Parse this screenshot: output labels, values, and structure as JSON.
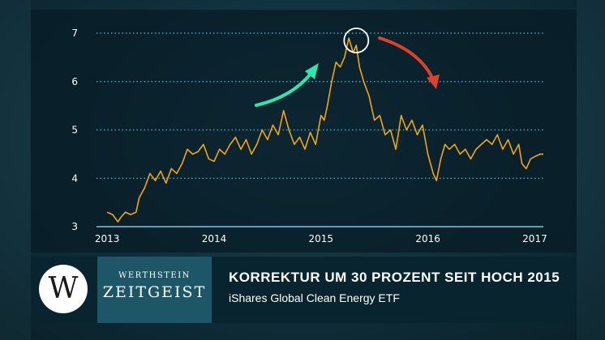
{
  "chart_data": {
    "type": "line",
    "title": "",
    "xlabel": "",
    "ylabel": "",
    "xlim": [
      2012.9,
      2017.08
    ],
    "ylim": [
      3,
      7
    ],
    "x_ticks": [
      {
        "value": 2013,
        "label": "2013"
      },
      {
        "value": 2014,
        "label": "2014"
      },
      {
        "value": 2015,
        "label": "2015"
      },
      {
        "value": 2016,
        "label": "2016"
      },
      {
        "value": 2017,
        "label": "2017"
      }
    ],
    "y_ticks": [
      {
        "value": 3,
        "label": "3"
      },
      {
        "value": 4,
        "label": "4"
      },
      {
        "value": 5,
        "label": "5"
      },
      {
        "value": 6,
        "label": "6"
      },
      {
        "value": 7,
        "label": "7"
      }
    ],
    "grid": "horizontal dotted",
    "series": [
      {
        "color": "#f2a515",
        "x": [
          2013.0,
          2013.05,
          2013.1,
          2013.13,
          2013.17,
          2013.22,
          2013.27,
          2013.3,
          2013.35,
          2013.4,
          2013.45,
          2013.5,
          2013.55,
          2013.6,
          2013.65,
          2013.7,
          2013.75,
          2013.8,
          2013.85,
          2013.9,
          2013.95,
          2014.0,
          2014.05,
          2014.1,
          2014.15,
          2014.2,
          2014.25,
          2014.3,
          2014.35,
          2014.4,
          2014.45,
          2014.5,
          2014.55,
          2014.6,
          2014.65,
          2014.7,
          2014.75,
          2014.8,
          2014.85,
          2014.9,
          2014.95,
          2015.0,
          2015.03,
          2015.06,
          2015.1,
          2015.14,
          2015.18,
          2015.22,
          2015.26,
          2015.3,
          2015.33,
          2015.36,
          2015.4,
          2015.45,
          2015.5,
          2015.55,
          2015.6,
          2015.65,
          2015.7,
          2015.75,
          2015.8,
          2015.85,
          2015.9,
          2015.95,
          2016.0,
          2016.05,
          2016.08,
          2016.12,
          2016.16,
          2016.2,
          2016.25,
          2016.3,
          2016.35,
          2016.4,
          2016.45,
          2016.5,
          2016.55,
          2016.6,
          2016.65,
          2016.7,
          2016.75,
          2016.8,
          2016.85,
          2016.88,
          2016.92,
          2016.96,
          2017.0,
          2017.05,
          2017.08
        ],
        "y": [
          3.3,
          3.25,
          3.1,
          3.2,
          3.3,
          3.25,
          3.3,
          3.6,
          3.8,
          4.1,
          3.95,
          4.15,
          3.9,
          4.2,
          4.1,
          4.3,
          4.6,
          4.5,
          4.55,
          4.7,
          4.4,
          4.35,
          4.6,
          4.5,
          4.7,
          4.85,
          4.6,
          4.8,
          4.5,
          4.7,
          5.0,
          4.8,
          5.1,
          4.9,
          5.4,
          5.0,
          4.7,
          4.85,
          4.6,
          4.95,
          4.7,
          5.3,
          5.2,
          5.5,
          6.0,
          6.4,
          6.3,
          6.5,
          6.9,
          6.6,
          6.75,
          6.3,
          6.0,
          5.7,
          5.2,
          5.3,
          4.9,
          5.0,
          4.6,
          5.3,
          5.0,
          5.2,
          4.9,
          5.1,
          4.5,
          4.1,
          3.95,
          4.4,
          4.7,
          4.6,
          4.7,
          4.5,
          4.6,
          4.4,
          4.6,
          4.7,
          4.8,
          4.7,
          4.9,
          4.6,
          4.8,
          4.5,
          4.7,
          4.3,
          4.2,
          4.4,
          4.45,
          4.5,
          4.5
        ]
      }
    ],
    "annotations": [
      {
        "type": "arrow-up",
        "color": "#2ee6b0"
      },
      {
        "type": "arrow-down",
        "color": "#e0402a"
      },
      {
        "type": "circle-peak",
        "x": 2015.33,
        "y": 6.85,
        "color": "#ffffff"
      }
    ]
  },
  "footer": {
    "logo_letter": "W",
    "brand_top": "WERTHSTEIN",
    "brand_bottom": "ZEITGEIST",
    "headline": "KORREKTUR UM 30 PROZENT SEIT HOCH 2015",
    "subline": "iShares Global Clean Energy ETF"
  }
}
